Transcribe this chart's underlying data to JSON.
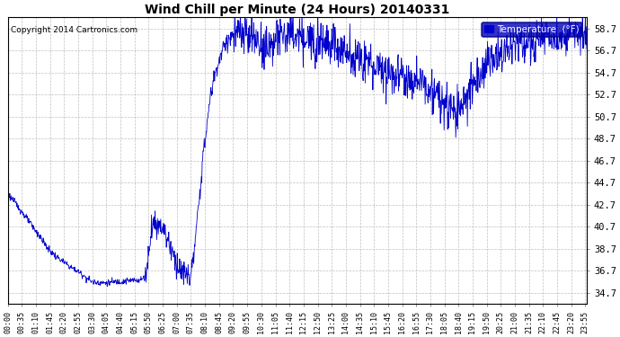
{
  "title": "Wind Chill per Minute (24 Hours) 20140331",
  "copyright": "Copyright 2014 Cartronics.com",
  "legend_label": "Temperature  (°F)",
  "line_color": "#0000cc",
  "background_color": "#ffffff",
  "grid_color": "#b0b0b0",
  "ylim": [
    33.7,
    59.7
  ],
  "yticks": [
    34.7,
    36.7,
    38.7,
    40.7,
    42.7,
    44.7,
    46.7,
    48.7,
    50.7,
    52.7,
    54.7,
    56.7,
    58.7
  ],
  "total_minutes": 1440,
  "xtick_interval": 35,
  "x_labels": [
    "00:00",
    "00:35",
    "01:10",
    "01:45",
    "02:20",
    "02:55",
    "03:30",
    "04:05",
    "04:40",
    "05:15",
    "05:50",
    "06:25",
    "07:00",
    "07:35",
    "08:10",
    "08:45",
    "09:20",
    "09:55",
    "10:30",
    "11:05",
    "11:40",
    "12:15",
    "12:50",
    "13:25",
    "14:00",
    "14:35",
    "15:10",
    "15:45",
    "16:20",
    "16:55",
    "17:30",
    "18:05",
    "18:40",
    "19:15",
    "19:50",
    "20:25",
    "21:00",
    "21:35",
    "22:10",
    "22:45",
    "23:20",
    "23:55"
  ],
  "figwidth": 6.9,
  "figheight": 3.75,
  "dpi": 100
}
